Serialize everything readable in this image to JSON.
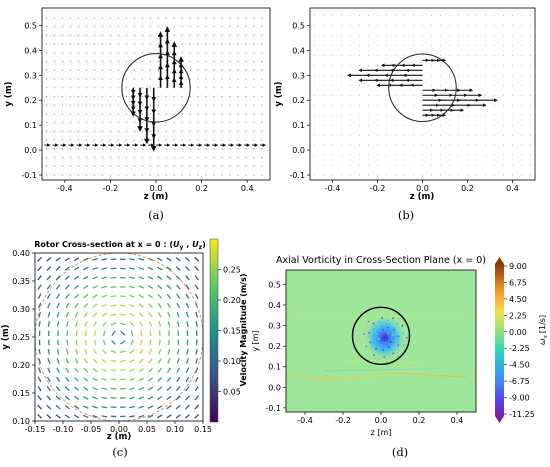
{
  "chart_data": [
    {
      "type": "quiver",
      "panel_label": "(a)",
      "xlabel": "z (m)",
      "ylabel": "y (m)",
      "xlim": [
        -0.5,
        0.5
      ],
      "ylim": [
        -0.12,
        0.57
      ],
      "xticks": [
        "-0.4",
        "-0.2",
        "0.0",
        "0.2",
        "0.4"
      ],
      "xtick_values": [
        -0.4,
        -0.2,
        0.0,
        0.2,
        0.4
      ],
      "yticks": [
        "-0.1",
        "0.0",
        "0.1",
        "0.2",
        "0.3",
        "0.4",
        "0.5"
      ],
      "ytick_values": [
        -0.1,
        0.0,
        0.1,
        0.2,
        0.3,
        0.4,
        0.5
      ],
      "circle": {
        "center": [
          0.0,
          0.25
        ],
        "radius": 0.15
      },
      "background_flow": {
        "y": 0.02,
        "direction": "+z"
      },
      "vectors": [
        {
          "z": -0.1,
          "y": 0.25,
          "u": 0,
          "v": -0.11
        },
        {
          "z": -0.07,
          "y": 0.25,
          "u": 0,
          "v": -0.17
        },
        {
          "z": -0.04,
          "y": 0.25,
          "u": 0,
          "v": -0.22
        },
        {
          "z": -0.01,
          "y": 0.25,
          "u": 0,
          "v": -0.25
        },
        {
          "z": 0.02,
          "y": 0.25,
          "u": 0,
          "v": 0.22
        },
        {
          "z": 0.05,
          "y": 0.25,
          "u": 0,
          "v": 0.24
        },
        {
          "z": 0.08,
          "y": 0.25,
          "u": 0,
          "v": 0.18
        },
        {
          "z": 0.11,
          "y": 0.25,
          "u": 0,
          "v": 0.12
        }
      ]
    },
    {
      "type": "quiver",
      "panel_label": "(b)",
      "xlabel": "z (m)",
      "ylabel": "y (m)",
      "xlim": [
        -0.5,
        0.5
      ],
      "ylim": [
        -0.12,
        0.57
      ],
      "xticks": [
        "-0.4",
        "-0.2",
        "0.0",
        "0.2",
        "0.4"
      ],
      "xtick_values": [
        -0.4,
        -0.2,
        0.0,
        0.2,
        0.4
      ],
      "yticks": [
        "-0.1",
        "0.0",
        "0.1",
        "0.2",
        "0.3",
        "0.4",
        "0.5"
      ],
      "ytick_values": [
        -0.1,
        0.0,
        0.1,
        0.2,
        0.3,
        0.4,
        0.5
      ],
      "circle": {
        "center": [
          0.0,
          0.25
        ],
        "radius": 0.15
      },
      "vectors": [
        {
          "z": 0.0,
          "y": 0.36,
          "u": 0.1,
          "v": 0
        },
        {
          "z": 0.0,
          "y": 0.34,
          "u": -0.18,
          "v": 0
        },
        {
          "z": 0.0,
          "y": 0.32,
          "u": -0.28,
          "v": 0
        },
        {
          "z": 0.0,
          "y": 0.3,
          "u": -0.33,
          "v": 0
        },
        {
          "z": 0.0,
          "y": 0.28,
          "u": -0.28,
          "v": 0
        },
        {
          "z": 0.0,
          "y": 0.26,
          "u": -0.2,
          "v": 0
        },
        {
          "z": 0.0,
          "y": 0.24,
          "u": 0.22,
          "v": 0
        },
        {
          "z": 0.0,
          "y": 0.22,
          "u": 0.26,
          "v": 0
        },
        {
          "z": 0.0,
          "y": 0.2,
          "u": 0.33,
          "v": 0
        },
        {
          "z": 0.0,
          "y": 0.18,
          "u": 0.28,
          "v": 0
        },
        {
          "z": 0.0,
          "y": 0.16,
          "u": 0.18,
          "v": 0
        },
        {
          "z": 0.0,
          "y": 0.14,
          "u": 0.1,
          "v": 0
        }
      ]
    },
    {
      "type": "quiver",
      "panel_label": "(c)",
      "title": "Rotor Cross-section at x = 0 : (U_y , U_z)",
      "title_prefix": "Rotor Cross-section at x = 0 : (",
      "title_u": "U",
      "title_sub_y": "y",
      "title_u2": "U",
      "title_sub_z": "z",
      "xlabel": "z (m)",
      "ylabel": "y (m)",
      "xlim": [
        -0.15,
        0.15
      ],
      "ylim": [
        0.1,
        0.4
      ],
      "xticks": [
        "-0.15",
        "-0.10",
        "-0.05",
        "0.00",
        "0.05",
        "0.10",
        "0.15"
      ],
      "xtick_values": [
        -0.15,
        -0.1,
        -0.05,
        0.0,
        0.05,
        0.1,
        0.15
      ],
      "yticks": [
        "0.10",
        "0.15",
        "0.20",
        "0.25",
        "0.30",
        "0.35",
        "0.40"
      ],
      "ytick_values": [
        0.1,
        0.15,
        0.2,
        0.25,
        0.3,
        0.35,
        0.4
      ],
      "circle": {
        "center": [
          0.0,
          0.25
        ],
        "radius": 0.15
      },
      "colorbar": {
        "label": "Velocity Magnitude (m/s)",
        "range": [
          0.0,
          0.3
        ],
        "ticks": [
          "0.05",
          "0.10",
          "0.15",
          "0.20",
          "0.25"
        ],
        "tick_values": [
          0.05,
          0.1,
          0.15,
          0.2,
          0.25
        ],
        "colormap": "viridis"
      },
      "field": "swirl about (0, 0.25), peak magnitude ~0.27 m/s near r = 0.05 m"
    },
    {
      "type": "heatmap",
      "panel_label": "(d)",
      "title": "Axial Vorticity in Cross-Section Plane (x = 0)",
      "xlabel": "z [m]",
      "ylabel": "y [m]",
      "xlim": [
        -0.5,
        0.5
      ],
      "ylim": [
        -0.12,
        0.57
      ],
      "xticks": [
        "-0.4",
        "-0.2",
        "0.0",
        "0.2",
        "0.4"
      ],
      "xtick_values": [
        -0.4,
        -0.2,
        0.0,
        0.2,
        0.4
      ],
      "yticks": [
        "-0.1",
        "0.0",
        "0.1",
        "0.2",
        "0.3",
        "0.4",
        "0.5"
      ],
      "ytick_values": [
        -0.1,
        0.0,
        0.1,
        0.2,
        0.3,
        0.4,
        0.5
      ],
      "circle": {
        "center": [
          0.0,
          0.25
        ],
        "radius": 0.15
      },
      "colorbar": {
        "label": "ω_x [1/s]",
        "label_omega": "ω",
        "label_sub": "x",
        "label_unit": "[1/s]",
        "range": [
          -11.25,
          9.0
        ],
        "ticks": [
          "9.00",
          "6.75",
          "4.50",
          "2.25",
          "0.00",
          "-2.25",
          "-4.50",
          "-6.75",
          "-9.00",
          "-11.25"
        ],
        "tick_values": [
          9.0,
          6.75,
          4.5,
          2.25,
          0.0,
          -2.25,
          -4.5,
          -6.75,
          -9.0,
          -11.25
        ],
        "colormap": "rainbow (purple negative, orange-brown positive)"
      },
      "field": "near-zero background; strong negative vorticity (blue/purple) inside rotor disk centred at (0.02, 0.24); weak positive streaks near y ≈ 0.05"
    }
  ]
}
